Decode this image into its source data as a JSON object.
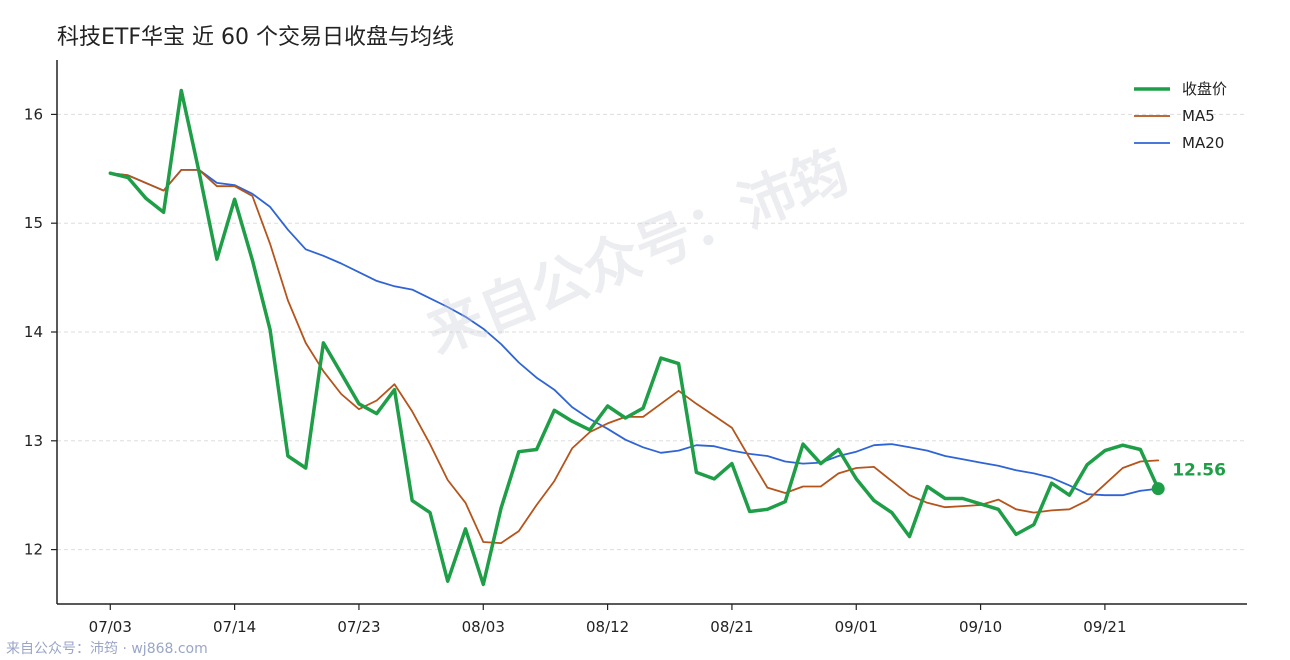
{
  "chart_data": {
    "type": "line",
    "title": "科技ETF华宝 近 60 个交易日收盘与均线",
    "xlabel": "",
    "ylabel": "",
    "ylim": [
      11.5,
      16.5
    ],
    "yticks": [
      12,
      13,
      14,
      15,
      16
    ],
    "xlim": [
      -3,
      64
    ],
    "x_tick_labels": [
      "07/03",
      "07/14",
      "07/23",
      "08/03",
      "08/12",
      "08/21",
      "09/01",
      "09/10",
      "09/21"
    ],
    "x_tick_index": [
      0,
      7,
      14,
      21,
      28,
      35,
      42,
      49,
      56
    ],
    "grid": "horizontal",
    "legend_position": "top-right",
    "series": [
      {
        "name": "收盘价",
        "color": "#1f9e48",
        "values": [
          15.46,
          15.42,
          15.23,
          15.1,
          16.22,
          15.47,
          14.67,
          15.22,
          14.66,
          14.02,
          12.86,
          12.75,
          13.9,
          13.62,
          13.34,
          13.25,
          13.47,
          12.45,
          12.34,
          11.71,
          12.19,
          11.68,
          12.38,
          12.9,
          12.92,
          13.28,
          13.18,
          13.1,
          13.32,
          13.21,
          13.3,
          13.76,
          13.71,
          12.71,
          12.65,
          12.79,
          12.35,
          12.37,
          12.44,
          12.97,
          12.79,
          12.92,
          12.65,
          12.45,
          12.34,
          12.12,
          12.58,
          12.47,
          12.47,
          12.42,
          12.37,
          12.14,
          12.23,
          12.61,
          12.5,
          12.78,
          12.91,
          12.96,
          12.92,
          12.56
        ]
      },
      {
        "name": "MA5",
        "color": "#b5541b",
        "values": [
          15.46,
          15.44,
          15.37,
          15.3,
          15.49,
          15.49,
          15.34,
          15.34,
          15.25,
          14.81,
          14.29,
          13.9,
          13.64,
          13.43,
          13.29,
          13.37,
          13.52,
          13.27,
          12.97,
          12.64,
          12.43,
          12.07,
          12.06,
          12.17,
          12.41,
          12.63,
          12.93,
          13.08,
          13.16,
          13.22,
          13.22,
          13.34,
          13.46,
          13.34,
          13.23,
          13.12,
          12.84,
          12.57,
          12.52,
          12.58,
          12.58,
          12.7,
          12.75,
          12.76,
          12.63,
          12.5,
          12.43,
          12.39,
          12.4,
          12.41,
          12.46,
          12.37,
          12.34,
          12.36,
          12.37,
          12.45,
          12.6,
          12.75,
          12.81,
          12.82
        ]
      },
      {
        "name": "MA20",
        "color": "#2f64d6",
        "values": [
          15.46,
          15.44,
          15.37,
          15.3,
          15.49,
          15.49,
          15.37,
          15.35,
          15.27,
          15.15,
          14.94,
          14.76,
          14.7,
          14.63,
          14.55,
          14.47,
          14.42,
          14.39,
          14.31,
          14.23,
          14.14,
          14.03,
          13.89,
          13.72,
          13.58,
          13.47,
          13.31,
          13.2,
          13.11,
          13.01,
          12.94,
          12.89,
          12.91,
          12.96,
          12.95,
          12.91,
          12.88,
          12.86,
          12.81,
          12.79,
          12.8,
          12.86,
          12.9,
          12.96,
          12.97,
          12.94,
          12.91,
          12.86,
          12.83,
          12.8,
          12.77,
          12.73,
          12.7,
          12.66,
          12.59,
          12.51,
          12.5,
          12.5,
          12.54,
          12.56
        ]
      }
    ],
    "end_label": "12.56",
    "watermark": "来自公众号：沛筠"
  },
  "footer": {
    "credit": "来自公众号：沛筠 · wj868.com"
  }
}
